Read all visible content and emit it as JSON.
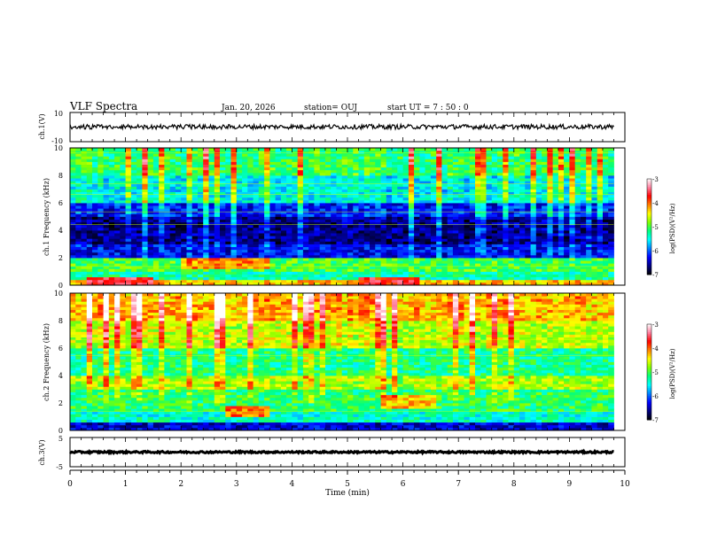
{
  "header": {
    "title": "VLF Spectra",
    "date": "Jan. 20, 2026",
    "station": "station= OUJ",
    "start": "start  UT =   7 : 50 : 0"
  },
  "colorbar": {
    "label": "log(PSD)(V²/Hz)",
    "ticks": [
      "-3",
      "-4",
      "-5",
      "-6",
      "-7"
    ],
    "range": [
      -7,
      -3
    ],
    "colors": [
      "#000000",
      "#000080",
      "#0000ff",
      "#0080ff",
      "#00ffff",
      "#00ff80",
      "#80ff00",
      "#ffff00",
      "#ff8000",
      "#ff0000",
      "#ff80a0",
      "#ffffff"
    ]
  },
  "chart_data": [
    {
      "type": "line",
      "name": "waveform-ch1",
      "ylabel": "ch.1(V)",
      "ylim": [
        -10,
        10
      ],
      "yticks": [
        "10",
        "-10"
      ],
      "x": [
        0,
        9.8
      ],
      "signal": {
        "mean": 0.2,
        "noise_amplitude": 1.6
      }
    },
    {
      "type": "heatmap",
      "name": "spectrogram-ch1",
      "ylabel": "ch.1\nFrequency (kHz)",
      "ylim": [
        0,
        10
      ],
      "yticks": [
        "0",
        "2",
        "4",
        "6",
        "8",
        "10"
      ],
      "x_range": [
        0,
        9.8
      ],
      "value_unit": "log(PSD)(V²/Hz)",
      "bands": [
        {
          "f0": 0.0,
          "f1": 0.4,
          "value": -4.3
        },
        {
          "f0": 0.4,
          "f1": 1.0,
          "value": -5.3
        },
        {
          "f0": 1.0,
          "f1": 2.0,
          "value": -5.0
        },
        {
          "f0": 2.0,
          "f1": 3.0,
          "value": -6.3
        },
        {
          "f0": 3.0,
          "f1": 5.0,
          "value": -6.6
        },
        {
          "f0": 5.0,
          "f1": 6.0,
          "value": -6.2
        },
        {
          "f0": 6.0,
          "f1": 8.0,
          "value": -5.5
        },
        {
          "f0": 8.0,
          "f1": 10.0,
          "value": -5.1
        }
      ],
      "features": [
        {
          "kind": "patch",
          "t0": 0.3,
          "t1": 1.5,
          "f0": 0.0,
          "f1": 0.7,
          "value": -3.5
        },
        {
          "kind": "patch",
          "t0": 5.2,
          "t1": 6.3,
          "f0": 0.0,
          "f1": 0.6,
          "value": -3.7
        },
        {
          "kind": "patch",
          "t0": 2.0,
          "t1": 3.6,
          "f0": 1.2,
          "f1": 2.0,
          "value": -4.1
        }
      ]
    },
    {
      "type": "heatmap",
      "name": "spectrogram-ch2",
      "ylabel": "ch.2\nFrequency (kHz)",
      "ylim": [
        0,
        10
      ],
      "yticks": [
        "0",
        "2",
        "4",
        "6",
        "8",
        "10"
      ],
      "x_range": [
        0,
        9.8
      ],
      "value_unit": "log(PSD)(V²/Hz)",
      "bands": [
        {
          "f0": 0.0,
          "f1": 0.6,
          "value": -6.4
        },
        {
          "f0": 0.6,
          "f1": 1.5,
          "value": -5.4
        },
        {
          "f0": 1.5,
          "f1": 3.0,
          "value": -5.1
        },
        {
          "f0": 3.0,
          "f1": 4.0,
          "value": -4.7
        },
        {
          "f0": 4.0,
          "f1": 6.0,
          "value": -5.2
        },
        {
          "f0": 6.0,
          "f1": 8.0,
          "value": -4.6
        },
        {
          "f0": 8.0,
          "f1": 10.0,
          "value": -4.2
        }
      ],
      "features": [
        {
          "kind": "patch",
          "t0": 2.8,
          "t1": 3.6,
          "f0": 1.0,
          "f1": 1.8,
          "value": -4.0
        },
        {
          "kind": "patch",
          "t0": 5.6,
          "t1": 6.6,
          "f0": 1.6,
          "f1": 2.6,
          "value": -4.3
        }
      ]
    },
    {
      "type": "line",
      "name": "waveform-ch3",
      "ylabel": "ch.3(V)",
      "ylim": [
        -5,
        5
      ],
      "yticks": [
        "5",
        "-5"
      ],
      "x": [
        0,
        9.8
      ],
      "signal": {
        "mean": 0.0,
        "noise_amplitude": 0.3
      }
    },
    {
      "type": "axis",
      "name": "time-axis",
      "xlabel": "Time (min)",
      "xlim": [
        0,
        10
      ],
      "xticks": [
        "0",
        "1",
        "2",
        "3",
        "4",
        "5",
        "6",
        "7",
        "8",
        "9",
        "10"
      ]
    }
  ]
}
